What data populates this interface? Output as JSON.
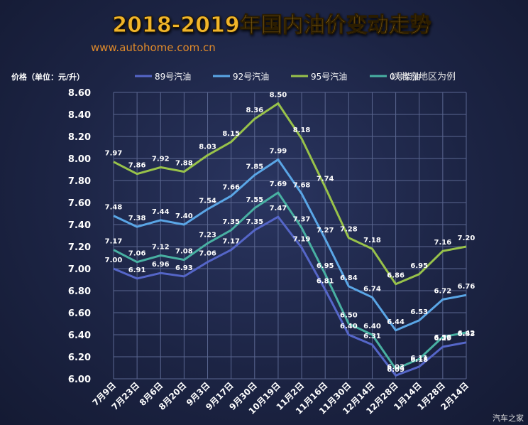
{
  "page": {
    "title": "2018-2019年国内油价变动走势",
    "website": "www.autohome.com.cn",
    "unit_label": "价格（单位：元/升）",
    "region_note": "以北京地区为例",
    "watermark": "汽车之家"
  },
  "chart_data": {
    "type": "line",
    "title": "2018-2019年国内油价变动走势",
    "ylabel": "价格（单位：元/升）",
    "xlabel": "",
    "ylim": [
      6.0,
      8.6
    ],
    "yticks": [
      "6.00",
      "6.20",
      "6.40",
      "6.60",
      "6.80",
      "7.00",
      "7.20",
      "7.40",
      "7.60",
      "7.80",
      "8.00",
      "8.20",
      "8.40",
      "8.60"
    ],
    "grid": true,
    "legend_position": "top",
    "categories": [
      "7月9日",
      "7月23日",
      "8月6日",
      "8月20日",
      "9月3日",
      "9月17日",
      "9月30日",
      "10月19日",
      "11月2日",
      "11月16日",
      "11月30日",
      "12月14日",
      "12月28日",
      "1月14日",
      "1月28日",
      "2月14日"
    ],
    "series": [
      {
        "name": "89号汽油",
        "color": "#5566c8",
        "values": [
          7.0,
          6.91,
          6.96,
          6.93,
          7.06,
          7.17,
          7.35,
          7.47,
          7.19,
          6.81,
          6.4,
          6.31,
          6.03,
          6.11,
          6.29,
          6.33
        ],
        "labels": [
          "7.00",
          "6.91",
          "6.96",
          "6.93",
          "7.06",
          "7.17",
          "7.35",
          "7.47",
          "7.19",
          "6.81",
          "6.40",
          "6.31",
          "6.03",
          "6.11",
          "6.29",
          "6.33"
        ]
      },
      {
        "name": "92号汽油",
        "color": "#5aa6e6",
        "values": [
          7.48,
          7.38,
          7.44,
          7.4,
          7.54,
          7.66,
          7.85,
          7.99,
          7.68,
          7.27,
          6.84,
          6.74,
          6.44,
          6.53,
          6.72,
          6.76
        ],
        "labels": [
          "7.48",
          "7.38",
          "7.44",
          "7.40",
          "7.54",
          "7.66",
          "7.85",
          "7.99",
          "7.68",
          "7.27",
          "6.84",
          "6.74",
          "6.44",
          "6.53",
          "6.72",
          "6.76"
        ]
      },
      {
        "name": "95号汽油",
        "color": "#98c24a",
        "values": [
          7.97,
          7.86,
          7.92,
          7.88,
          8.03,
          8.15,
          8.36,
          8.5,
          8.18,
          7.74,
          7.28,
          7.18,
          6.86,
          6.95,
          7.16,
          7.2
        ],
        "labels": [
          "7.97",
          "7.86",
          "7.92",
          "7.88",
          "8.03",
          "8.15",
          "8.36",
          "8.50",
          "8.18",
          "7.74",
          "7.28",
          "7.18",
          "6.86",
          "6.95",
          "7.16",
          "7.20"
        ]
      },
      {
        "name": "0号柴油",
        "color": "#48b0a2",
        "values": [
          7.17,
          7.06,
          7.12,
          7.08,
          7.23,
          7.35,
          7.55,
          7.69,
          7.37,
          6.95,
          6.5,
          6.4,
          6.09,
          6.18,
          6.38,
          6.42
        ],
        "labels": [
          "7.17",
          "7.06",
          "7.12",
          "7.08",
          "7.23",
          "7.35",
          "7.55",
          "7.69",
          "7.37",
          "6.95",
          "6.50",
          "6.40",
          "6.09",
          "6.18",
          "6.38",
          "6.42"
        ]
      }
    ]
  }
}
